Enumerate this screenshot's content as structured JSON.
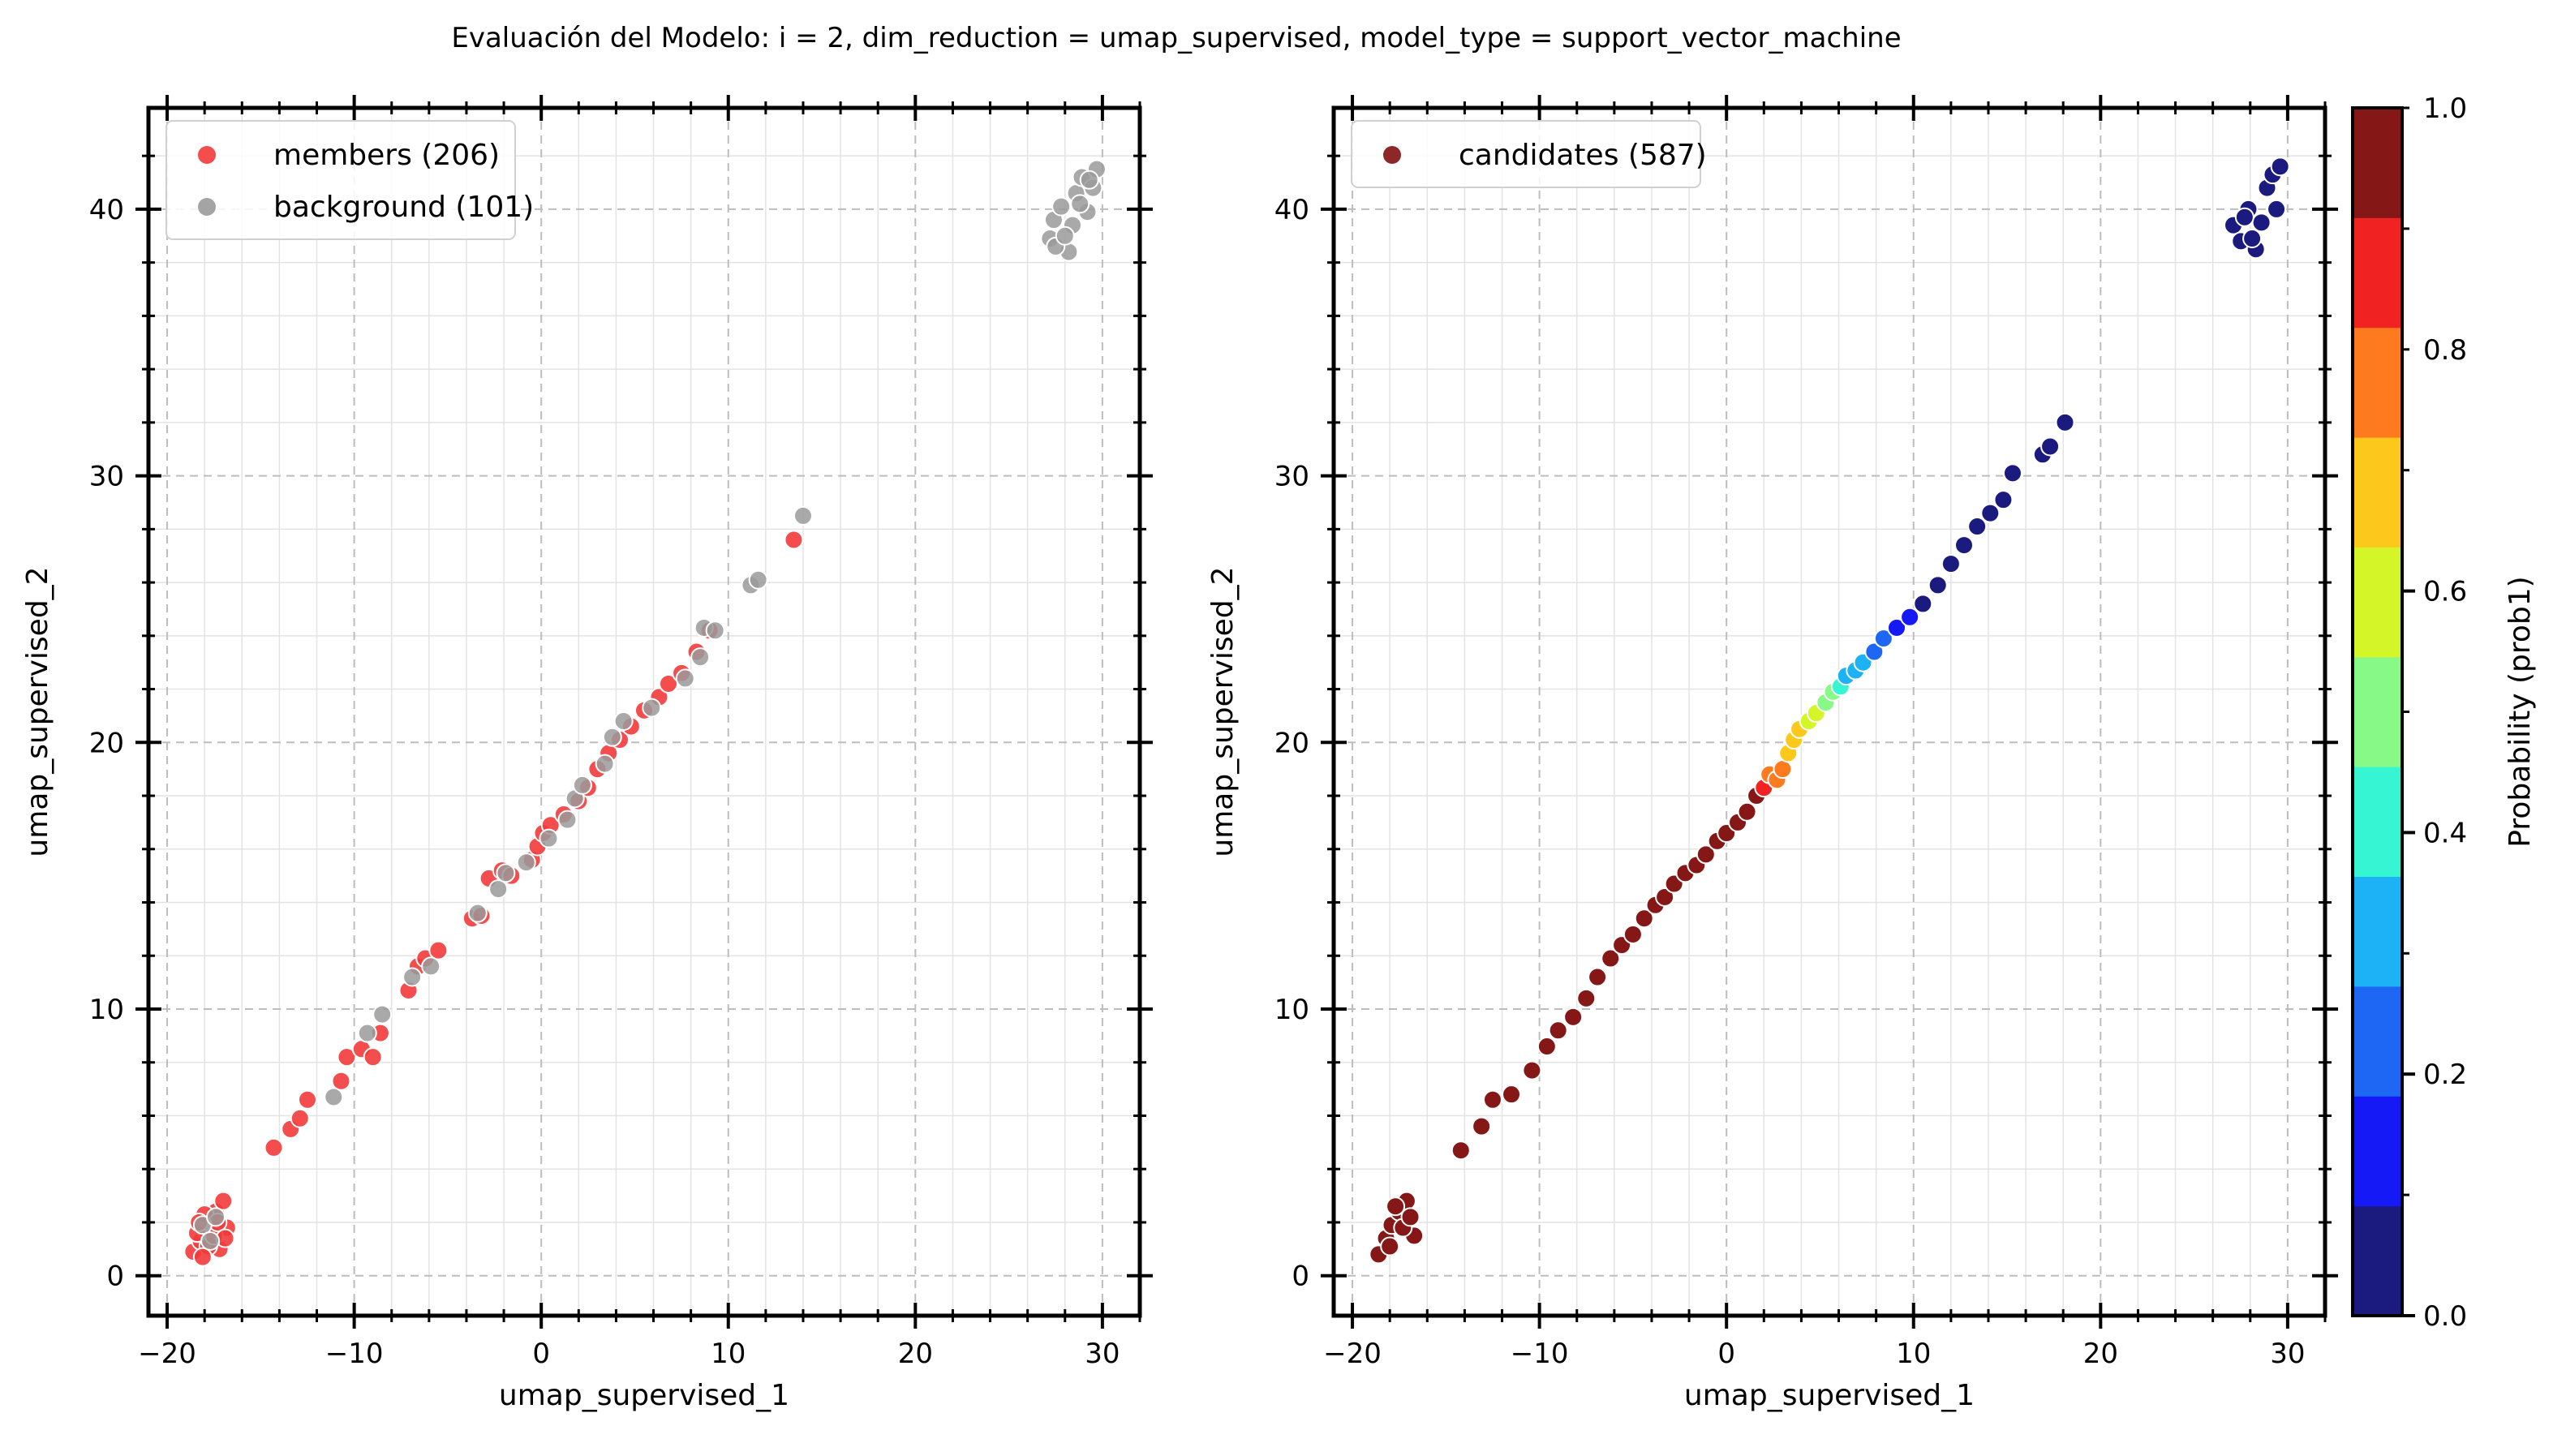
{
  "figure_title": "Evaluación del Modelo: i = 2, dim_reduction = umap_supervised, model_type = support_vector_machine",
  "colors": {
    "members": "#f23a3a",
    "background": "#9a9a9a",
    "candidates_legend": "#7f1111",
    "grid": "#bdbdbd",
    "colormap": [
      "#1b1a7e",
      "#1419f5",
      "#1e67f5",
      "#1cb2f5",
      "#35f5d2",
      "#87f987",
      "#d4f629",
      "#fdc81c",
      "#fe7a1e",
      "#f02222",
      "#861717"
    ]
  },
  "chart_data": [
    {
      "type": "scatter",
      "title": "",
      "xlabel": "umap_supervised_1",
      "ylabel": "umap_supervised_2",
      "xlim": [
        -21,
        32
      ],
      "ylim": [
        -1.5,
        43.8
      ],
      "xticks": [
        -20,
        -10,
        0,
        10,
        20,
        30
      ],
      "yticks": [
        0,
        10,
        20,
        30,
        40
      ],
      "xtick_labels": [
        "−20",
        "−10",
        "0",
        "10",
        "20",
        "30"
      ],
      "ytick_labels": [
        "0",
        "10",
        "20",
        "30",
        "40"
      ],
      "grid": true,
      "legend_position": "top-left",
      "legend": [
        {
          "label": "members (206)",
          "color": "#f23a3a"
        },
        {
          "label": "background (101)",
          "color": "#9a9a9a"
        }
      ],
      "series": [
        {
          "name": "members (206)",
          "color": "#f23a3a",
          "points": [
            [
              -18.6,
              0.9
            ],
            [
              -18.2,
              1.3
            ],
            [
              -17.9,
              1.7
            ],
            [
              -17.6,
              2.1
            ],
            [
              -17.4,
              2.4
            ],
            [
              -18.0,
              2.3
            ],
            [
              -17.2,
              1.0
            ],
            [
              -17.0,
              2.8
            ],
            [
              -16.8,
              1.8
            ],
            [
              -18.4,
              1.6
            ],
            [
              -17.8,
              1.1
            ],
            [
              -17.5,
              1.5
            ],
            [
              -18.1,
              0.7
            ],
            [
              -17.3,
              2.0
            ],
            [
              -16.9,
              1.4
            ],
            [
              -18.3,
              2.0
            ],
            [
              -14.3,
              4.8
            ],
            [
              -13.4,
              5.5
            ],
            [
              -12.9,
              5.9
            ],
            [
              -12.5,
              6.6
            ],
            [
              -10.7,
              7.3
            ],
            [
              -10.4,
              8.2
            ],
            [
              -9.6,
              8.5
            ],
            [
              -9.0,
              8.2
            ],
            [
              -8.6,
              9.1
            ],
            [
              -7.1,
              10.7
            ],
            [
              -6.6,
              11.6
            ],
            [
              -6.2,
              11.9
            ],
            [
              -5.5,
              12.2
            ],
            [
              -3.7,
              13.4
            ],
            [
              -3.2,
              13.5
            ],
            [
              -2.8,
              14.9
            ],
            [
              -2.1,
              15.2
            ],
            [
              -1.6,
              15.0
            ],
            [
              -0.5,
              15.6
            ],
            [
              -0.2,
              16.1
            ],
            [
              0.1,
              16.6
            ],
            [
              0.5,
              16.9
            ],
            [
              1.2,
              17.3
            ],
            [
              2.0,
              17.8
            ],
            [
              2.5,
              18.3
            ],
            [
              3.0,
              19.0
            ],
            [
              3.6,
              19.6
            ],
            [
              4.2,
              20.1
            ],
            [
              4.8,
              20.6
            ],
            [
              5.5,
              21.2
            ],
            [
              6.3,
              21.7
            ],
            [
              6.8,
              22.2
            ],
            [
              7.5,
              22.6
            ],
            [
              8.3,
              23.4
            ],
            [
              9.0,
              24.2
            ],
            [
              13.5,
              27.6
            ]
          ]
        },
        {
          "name": "background (101)",
          "color": "#9a9a9a",
          "points": [
            [
              -18.1,
              1.9
            ],
            [
              -17.7,
              1.3
            ],
            [
              -17.4,
              2.2
            ],
            [
              -11.1,
              6.7
            ],
            [
              -9.3,
              9.1
            ],
            [
              -8.5,
              9.8
            ],
            [
              -6.9,
              11.2
            ],
            [
              -5.9,
              11.6
            ],
            [
              -3.4,
              13.6
            ],
            [
              -2.3,
              14.5
            ],
            [
              -1.9,
              15.1
            ],
            [
              -0.8,
              15.5
            ],
            [
              0.4,
              16.4
            ],
            [
              1.4,
              17.1
            ],
            [
              1.8,
              17.9
            ],
            [
              2.2,
              18.4
            ],
            [
              3.4,
              19.2
            ],
            [
              3.8,
              20.2
            ],
            [
              4.4,
              20.8
            ],
            [
              5.9,
              21.3
            ],
            [
              7.7,
              22.4
            ],
            [
              8.5,
              23.2
            ],
            [
              8.7,
              24.3
            ],
            [
              9.3,
              24.2
            ],
            [
              11.2,
              25.9
            ],
            [
              11.6,
              26.1
            ],
            [
              14.0,
              28.5
            ],
            [
              27.2,
              38.9
            ],
            [
              27.4,
              39.6
            ],
            [
              27.8,
              40.1
            ],
            [
              28.2,
              38.4
            ],
            [
              28.4,
              39.4
            ],
            [
              28.6,
              40.6
            ],
            [
              28.9,
              41.2
            ],
            [
              29.2,
              39.9
            ],
            [
              29.5,
              40.8
            ],
            [
              29.7,
              41.5
            ],
            [
              27.5,
              38.6
            ],
            [
              28.0,
              39.0
            ],
            [
              28.8,
              40.2
            ],
            [
              29.3,
              41.1
            ]
          ]
        }
      ]
    },
    {
      "type": "scatter",
      "title": "",
      "xlabel": "umap_supervised_1",
      "ylabel": "umap_supervised_2",
      "xlim": [
        -21,
        32
      ],
      "ylim": [
        -1.5,
        43.8
      ],
      "xticks": [
        -20,
        -10,
        0,
        10,
        20,
        30
      ],
      "yticks": [
        0,
        10,
        20,
        30,
        40
      ],
      "xtick_labels": [
        "−20",
        "−10",
        "0",
        "10",
        "20",
        "30"
      ],
      "ytick_labels": [
        "0",
        "10",
        "20",
        "30",
        "40"
      ],
      "grid": true,
      "legend_position": "top-left",
      "legend": [
        {
          "label": "candidates (587)",
          "color": "#7f1111"
        }
      ],
      "colorbar": {
        "label": "Probability (prob1)",
        "range": [
          0.0,
          1.0
        ],
        "ticks": [
          0.0,
          0.2,
          0.4,
          0.6,
          0.8,
          1.0
        ],
        "tick_labels": [
          "0.0",
          "0.2",
          "0.4",
          "0.6",
          "0.8",
          "1.0"
        ],
        "bins": 11
      },
      "series": [
        {
          "name": "candidates (587)",
          "points": [
            [
              -18.6,
              0.8,
              1.0
            ],
            [
              -18.2,
              1.4,
              1.0
            ],
            [
              -17.9,
              1.9,
              1.0
            ],
            [
              -17.5,
              2.4,
              1.0
            ],
            [
              -17.1,
              2.8,
              1.0
            ],
            [
              -16.7,
              1.5,
              1.0
            ],
            [
              -18.0,
              1.1,
              1.0
            ],
            [
              -17.3,
              1.8,
              1.0
            ],
            [
              -16.9,
              2.2,
              1.0
            ],
            [
              -17.7,
              2.6,
              1.0
            ],
            [
              -14.2,
              4.7,
              1.0
            ],
            [
              -13.1,
              5.6,
              1.0
            ],
            [
              -12.5,
              6.6,
              1.0
            ],
            [
              -11.5,
              6.8,
              1.0
            ],
            [
              -10.4,
              7.7,
              1.0
            ],
            [
              -9.6,
              8.6,
              1.0
            ],
            [
              -9.0,
              9.2,
              1.0
            ],
            [
              -8.2,
              9.7,
              1.0
            ],
            [
              -7.5,
              10.4,
              1.0
            ],
            [
              -6.9,
              11.2,
              1.0
            ],
            [
              -6.2,
              11.9,
              1.0
            ],
            [
              -5.6,
              12.4,
              1.0
            ],
            [
              -5.0,
              12.8,
              1.0
            ],
            [
              -4.4,
              13.4,
              1.0
            ],
            [
              -3.8,
              13.9,
              1.0
            ],
            [
              -3.3,
              14.2,
              1.0
            ],
            [
              -2.8,
              14.7,
              1.0
            ],
            [
              -2.2,
              15.1,
              1.0
            ],
            [
              -1.6,
              15.4,
              1.0
            ],
            [
              -1.1,
              15.8,
              1.0
            ],
            [
              -0.5,
              16.3,
              1.0
            ],
            [
              0.0,
              16.6,
              1.0
            ],
            [
              0.6,
              17.0,
              0.93
            ],
            [
              1.1,
              17.4,
              0.93
            ],
            [
              1.6,
              18.0,
              0.91
            ],
            [
              2.0,
              18.3,
              0.9
            ],
            [
              2.3,
              18.8,
              0.8
            ],
            [
              2.7,
              18.6,
              0.8
            ],
            [
              3.0,
              19.0,
              0.78
            ],
            [
              3.3,
              19.6,
              0.72
            ],
            [
              3.6,
              20.1,
              0.7
            ],
            [
              3.9,
              20.5,
              0.66
            ],
            [
              4.4,
              20.8,
              0.6
            ],
            [
              4.8,
              21.1,
              0.58
            ],
            [
              5.3,
              21.5,
              0.52
            ],
            [
              5.7,
              21.9,
              0.48
            ],
            [
              6.1,
              22.1,
              0.4
            ],
            [
              6.4,
              22.5,
              0.36
            ],
            [
              6.9,
              22.7,
              0.3
            ],
            [
              7.3,
              23.0,
              0.28
            ],
            [
              7.9,
              23.4,
              0.22
            ],
            [
              8.4,
              23.9,
              0.2
            ],
            [
              9.1,
              24.3,
              0.17
            ],
            [
              9.8,
              24.7,
              0.13
            ],
            [
              10.5,
              25.2,
              0.08
            ],
            [
              11.3,
              25.9,
              0.05
            ],
            [
              12.0,
              26.7,
              0.04
            ],
            [
              12.7,
              27.4,
              0.03
            ],
            [
              13.4,
              28.1,
              0.03
            ],
            [
              14.1,
              28.6,
              0.02
            ],
            [
              14.8,
              29.1,
              0.02
            ],
            [
              15.3,
              30.1,
              0.02
            ],
            [
              16.9,
              30.8,
              0.02
            ],
            [
              17.3,
              31.1,
              0.02
            ],
            [
              18.1,
              32.0,
              0.02
            ],
            [
              27.1,
              39.4,
              0.0
            ],
            [
              27.5,
              38.8,
              0.0
            ],
            [
              27.9,
              40.0,
              0.0
            ],
            [
              28.3,
              38.5,
              0.0
            ],
            [
              28.6,
              39.5,
              0.0
            ],
            [
              28.9,
              40.8,
              0.0
            ],
            [
              29.2,
              41.3,
              0.0
            ],
            [
              29.4,
              40.0,
              0.0
            ],
            [
              29.6,
              41.6,
              0.0
            ],
            [
              28.1,
              38.9,
              0.0
            ],
            [
              27.7,
              39.7,
              0.0
            ]
          ]
        }
      ]
    }
  ]
}
